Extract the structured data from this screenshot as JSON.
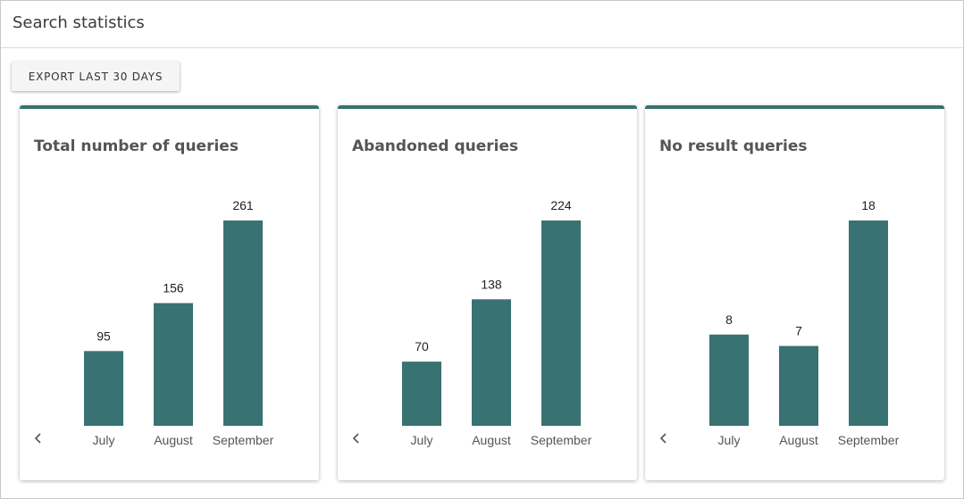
{
  "header": {
    "title": "Search statistics"
  },
  "toolbar": {
    "export_label": "EXPORT LAST 30 DAYS"
  },
  "colors": {
    "accent": "#387272"
  },
  "chart_data": [
    {
      "type": "bar",
      "title": "Total number of queries",
      "categories": [
        "July",
        "August",
        "September"
      ],
      "values": [
        95,
        156,
        261
      ],
      "ylim": [
        0,
        261
      ]
    },
    {
      "type": "bar",
      "title": "Abandoned queries",
      "categories": [
        "July",
        "August",
        "September"
      ],
      "values": [
        70,
        138,
        224
      ],
      "ylim": [
        0,
        224
      ]
    },
    {
      "type": "bar",
      "title": "No result queries",
      "categories": [
        "July",
        "August",
        "September"
      ],
      "values": [
        8,
        7,
        18
      ],
      "ylim": [
        0,
        18
      ]
    }
  ],
  "icons": {
    "prev": "chevron-left-icon"
  }
}
